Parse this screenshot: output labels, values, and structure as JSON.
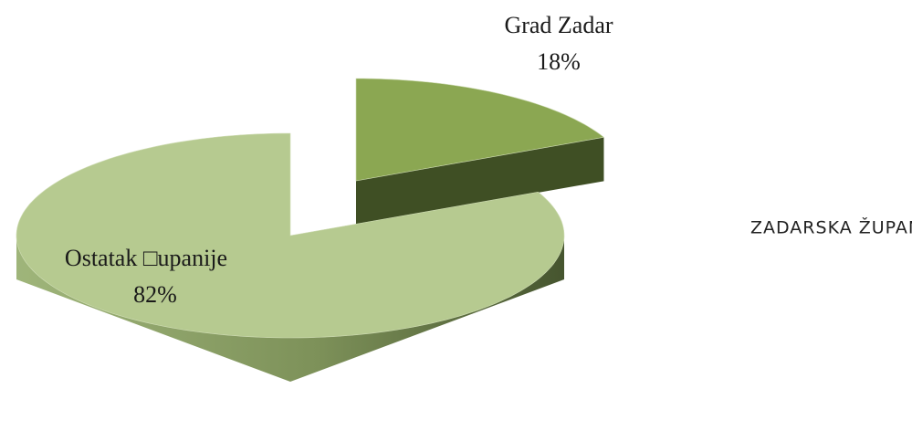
{
  "chart_data": {
    "type": "pie",
    "title": "ZADARSKA ŽUPANIJA",
    "categories": [
      "Grad Zadar",
      "Ostatak □upanije"
    ],
    "values": [
      18,
      82
    ],
    "value_labels": [
      "18%",
      "82%"
    ],
    "colors": [
      "#8ba752",
      "#b6ca90"
    ]
  }
}
